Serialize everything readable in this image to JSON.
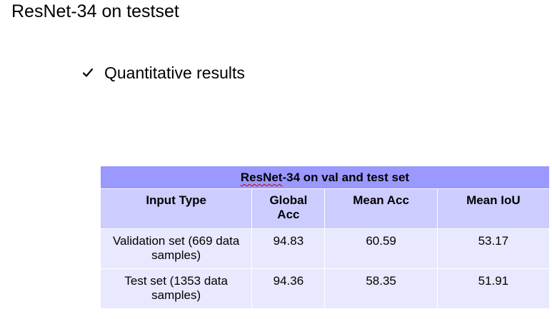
{
  "slide": {
    "title": "ResNet-34 on testset",
    "bullet": {
      "icon": "checkmark-icon",
      "text": "Quantitative results"
    }
  },
  "table": {
    "caption_prefix": "ResNet",
    "caption_suffix": "-34 on val and test set",
    "headers": [
      "Input Type",
      "Global Acc",
      "Mean Acc",
      "Mean IoU"
    ],
    "rows": [
      [
        "Validation set (669 data samples)",
        "94.83",
        "60.59",
        "53.17"
      ],
      [
        "Test set (1353 data samples)",
        "94.36",
        "58.35",
        "51.91"
      ]
    ],
    "colors": {
      "caption_bg": "#9999ff",
      "header_bg": "#ccccff",
      "row_bg": "#e8e8ff"
    }
  }
}
